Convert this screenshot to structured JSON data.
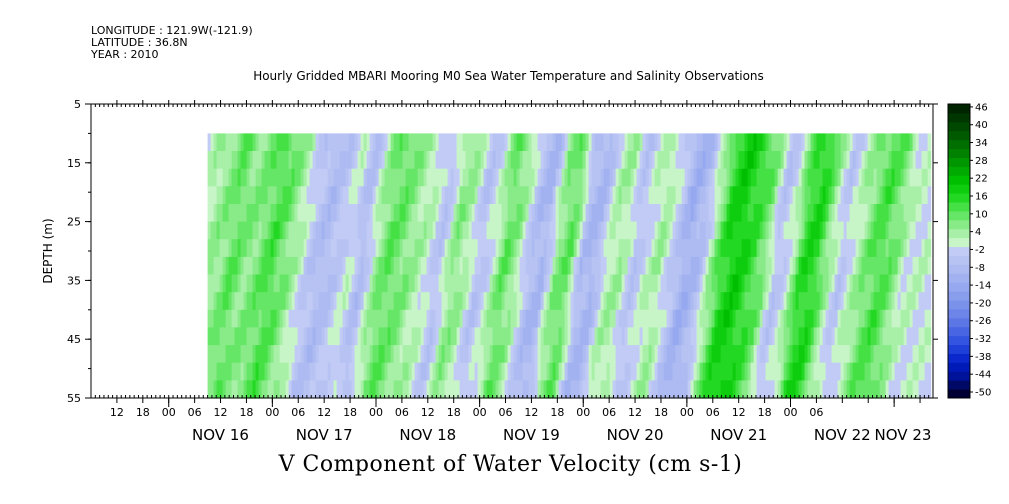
{
  "meta": {
    "longitude": "LONGITUDE : 121.9W(-121.9)",
    "latitude": "LATITUDE : 36.8N",
    "year": "YEAR : 2010"
  },
  "chart_data": {
    "type": "heatmap",
    "title": "Hourly Gridded MBARI Mooring M0 Sea Water Temperature and Salinity Observations",
    "xlabel": "V Component of Water Velocity (cm s-1)",
    "ylabel": "DEPTH (m)",
    "y_ticks": [
      "5",
      "15",
      "25",
      "35",
      "45",
      "55"
    ],
    "ylim": [
      5,
      55
    ],
    "y_reversed": true,
    "x_hour_ticks": [
      "12",
      "18",
      "00",
      "06",
      "12",
      "18",
      "00",
      "06",
      "12",
      "18",
      "00",
      "06",
      "12",
      "18",
      "00",
      "06",
      "12",
      "18",
      "00",
      "06",
      "12",
      "18",
      "00",
      "06",
      "12",
      "18",
      "00",
      "06"
    ],
    "x_day_labels": [
      "NOV 16",
      "NOV 17",
      "NOV 18",
      "NOV 19",
      "NOV 20",
      "NOV 21",
      "NOV 22",
      "NOV 23"
    ],
    "x_range": [
      "2010-11-15T06:00",
      "2010-11-23T09:00"
    ],
    "data_range": {
      "x_start": "2010-11-16T09:00",
      "x_end": "2010-11-23T08:00",
      "depth_top": 10,
      "depth_bottom": 55
    },
    "colorbar": {
      "labels": [
        "46",
        "40",
        "34",
        "28",
        "22",
        "16",
        "10",
        "4",
        "-2",
        "-8",
        "-14",
        "-20",
        "-26",
        "-32",
        "-38",
        "-44",
        "-50"
      ],
      "levels": [
        -50,
        -47,
        -44,
        -41,
        -38,
        -35,
        -32,
        -29,
        -26,
        -23,
        -20,
        -17,
        -14,
        -11,
        -8,
        -5,
        -2,
        1,
        4,
        7,
        10,
        13,
        16,
        19,
        22,
        25,
        28,
        31,
        34,
        37,
        40,
        43,
        46,
        49
      ],
      "colors": [
        "#000033",
        "#000a66",
        "#001299",
        "#001ab8",
        "#0a28cc",
        "#1f3fd9",
        "#3354e0",
        "#4865e3",
        "#5c76e6",
        "#6d85e8",
        "#7b92ea",
        "#899ded",
        "#96a8ef",
        "#a2b2f0",
        "#adbbf2",
        "#b7c3f3",
        "#c2cbf5",
        "#c8f5c8",
        "#a8f0a8",
        "#88eb88",
        "#66e666",
        "#44e044",
        "#22d822",
        "#0ecc0e",
        "#00bf00",
        "#00aa00",
        "#009600",
        "#008200",
        "#006e00",
        "#005a00",
        "#004800",
        "#003600",
        "#002400"
      ]
    },
    "v_profile": [
      {
        "time": "2010-11-16T09:00",
        "v": 2
      },
      {
        "time": "2010-11-16T12:00",
        "v": 6
      },
      {
        "time": "2010-11-16T15:00",
        "v": 8
      },
      {
        "time": "2010-11-16T18:00",
        "v": 12
      },
      {
        "time": "2010-11-16T21:00",
        "v": 8
      },
      {
        "time": "2010-11-17T00:00",
        "v": 10
      },
      {
        "time": "2010-11-17T03:00",
        "v": 14
      },
      {
        "time": "2010-11-17T06:00",
        "v": 10
      },
      {
        "time": "2010-11-17T09:00",
        "v": 4
      },
      {
        "time": "2010-11-17T12:00",
        "v": -3
      },
      {
        "time": "2010-11-17T15:00",
        "v": -6
      },
      {
        "time": "2010-11-17T18:00",
        "v": -3
      },
      {
        "time": "2010-11-17T21:00",
        "v": 2
      },
      {
        "time": "2010-11-18T00:00",
        "v": -6
      },
      {
        "time": "2010-11-18T03:00",
        "v": 6
      },
      {
        "time": "2010-11-18T06:00",
        "v": 12
      },
      {
        "time": "2010-11-18T09:00",
        "v": 10
      },
      {
        "time": "2010-11-18T12:00",
        "v": 6
      },
      {
        "time": "2010-11-18T15:00",
        "v": 3
      },
      {
        "time": "2010-11-18T18:00",
        "v": -4
      },
      {
        "time": "2010-11-18T21:00",
        "v": 8
      },
      {
        "time": "2010-11-19T00:00",
        "v": 6
      },
      {
        "time": "2010-11-19T03:00",
        "v": -4
      },
      {
        "time": "2010-11-19T06:00",
        "v": 2
      },
      {
        "time": "2010-11-19T09:00",
        "v": 12
      },
      {
        "time": "2010-11-19T12:00",
        "v": 6
      },
      {
        "time": "2010-11-19T15:00",
        "v": -5
      },
      {
        "time": "2010-11-19T18:00",
        "v": -8
      },
      {
        "time": "2010-11-19T21:00",
        "v": 8
      },
      {
        "time": "2010-11-20T00:00",
        "v": 12
      },
      {
        "time": "2010-11-20T03:00",
        "v": -6
      },
      {
        "time": "2010-11-20T06:00",
        "v": -8
      },
      {
        "time": "2010-11-20T09:00",
        "v": 4
      },
      {
        "time": "2010-11-20T12:00",
        "v": 6
      },
      {
        "time": "2010-11-20T15:00",
        "v": -4
      },
      {
        "time": "2010-11-20T18:00",
        "v": 2
      },
      {
        "time": "2010-11-20T21:00",
        "v": 6
      },
      {
        "time": "2010-11-21T00:00",
        "v": -2
      },
      {
        "time": "2010-11-21T03:00",
        "v": -10
      },
      {
        "time": "2010-11-21T06:00",
        "v": -6
      },
      {
        "time": "2010-11-21T09:00",
        "v": 6
      },
      {
        "time": "2010-11-21T12:00",
        "v": 18
      },
      {
        "time": "2010-11-21T15:00",
        "v": 20
      },
      {
        "time": "2010-11-21T18:00",
        "v": 16
      },
      {
        "time": "2010-11-21T21:00",
        "v": 10
      },
      {
        "time": "2010-11-22T00:00",
        "v": -4
      },
      {
        "time": "2010-11-22T03:00",
        "v": 2
      },
      {
        "time": "2010-11-22T06:00",
        "v": 16
      },
      {
        "time": "2010-11-22T09:00",
        "v": 18
      },
      {
        "time": "2010-11-22T12:00",
        "v": 6
      },
      {
        "time": "2010-11-22T15:00",
        "v": -3
      },
      {
        "time": "2010-11-22T18:00",
        "v": 4
      },
      {
        "time": "2010-11-22T21:00",
        "v": 10
      },
      {
        "time": "2010-11-23T00:00",
        "v": 14
      },
      {
        "time": "2010-11-23T03:00",
        "v": 10
      },
      {
        "time": "2010-11-23T06:00",
        "v": 2
      }
    ],
    "tilt_hours_over_depth": 8
  }
}
